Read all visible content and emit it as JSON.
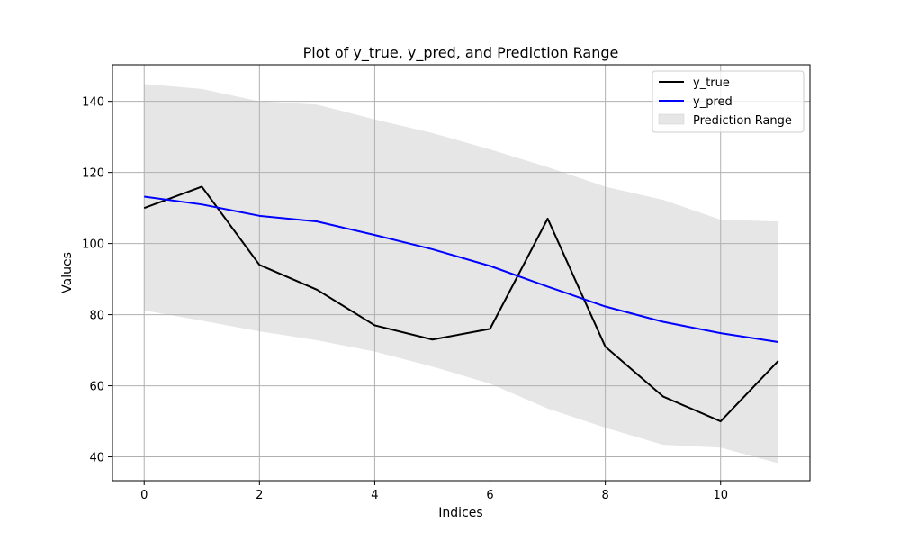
{
  "chart_data": {
    "type": "line",
    "title": "Plot of y_true, y_pred, and Prediction Range",
    "xlabel": "Indices",
    "ylabel": "Values",
    "x": [
      0,
      1,
      2,
      3,
      4,
      5,
      6,
      7,
      8,
      9,
      10,
      11
    ],
    "xlim": [
      -0.55,
      11.55
    ],
    "ylim": [
      33.3,
      150.3
    ],
    "xticks": [
      0,
      2,
      4,
      6,
      8,
      10
    ],
    "yticks": [
      40,
      60,
      80,
      100,
      120,
      140
    ],
    "grid": true,
    "legend_position": "top-right",
    "series": [
      {
        "name": "y_true",
        "color": "#000000",
        "values": [
          110,
          116,
          94,
          87,
          77,
          73,
          76,
          107,
          71,
          57,
          50,
          67
        ]
      },
      {
        "name": "y_pred",
        "color": "#0000ff",
        "values": [
          113.2,
          111.0,
          107.8,
          106.2,
          102.4,
          98.4,
          93.7,
          87.9,
          82.3,
          78.0,
          74.8,
          72.3
        ]
      }
    ],
    "band": {
      "name": "Prediction Range",
      "color": "#e6e6e6",
      "upper": [
        144.9,
        143.5,
        140.0,
        139.1,
        134.9,
        131.1,
        126.5,
        121.5,
        116.0,
        112.3,
        106.7,
        106.2
      ],
      "lower": [
        81.2,
        78.3,
        75.3,
        72.8,
        69.6,
        65.4,
        60.6,
        53.6,
        48.2,
        43.4,
        42.6,
        38.2
      ]
    }
  }
}
